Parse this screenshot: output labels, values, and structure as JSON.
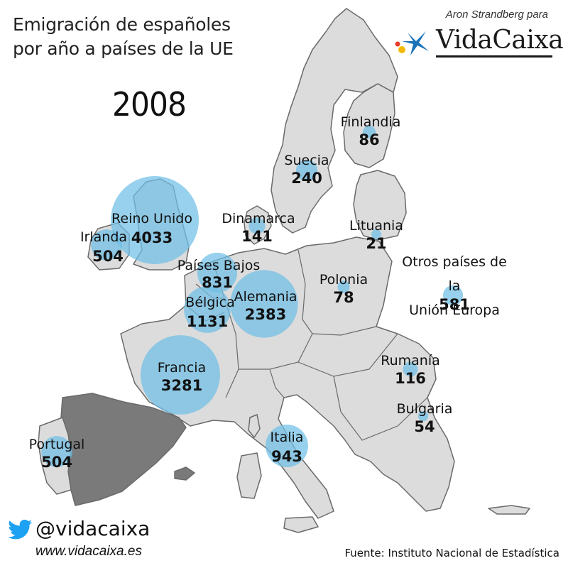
{
  "title_line1": "Emigración de españoles",
  "title_line2": "por año a países de la UE",
  "year": "2008",
  "author_credit": "Aron Strandberg para",
  "brand": {
    "name": "VidaCaixa",
    "icon": "caixa-star-logo-icon",
    "colors": {
      "star": "#1a73b8",
      "dot_yellow": "#f5b800",
      "dot_red": "#e53b2c"
    }
  },
  "social": {
    "icon": "twitter-bird-icon",
    "handle": "@vidacaixa",
    "website": "www.vidacaixa.es"
  },
  "source": "Fuente: Instituto Nacional de Estadística",
  "colors": {
    "land": "#dcdcdc",
    "border": "#6a6a6a",
    "origin_country": "#7a7a7a",
    "bubble": "#6fbfe6"
  },
  "origin_country": "España",
  "countries": [
    {
      "name": "Reino Unido",
      "value": 4033
    },
    {
      "name": "Irlanda",
      "value": 504
    },
    {
      "name": "Países Bajos",
      "value": 831
    },
    {
      "name": "Bélgica",
      "value": 1131
    },
    {
      "name": "Alemania",
      "value": 2383
    },
    {
      "name": "Francia",
      "value": 3281
    },
    {
      "name": "Portugal",
      "value": 504
    },
    {
      "name": "Italia",
      "value": 943
    },
    {
      "name": "Dinamarca",
      "value": 141
    },
    {
      "name": "Suecia",
      "value": 240
    },
    {
      "name": "Finlandia",
      "value": 86
    },
    {
      "name": "Lituania",
      "value": 21
    },
    {
      "name": "Polonia",
      "value": 78
    },
    {
      "name": "Rumanía",
      "value": 116
    },
    {
      "name": "Bulgaria",
      "value": 54
    }
  ],
  "other": {
    "line1": "Otros países de la",
    "line2": "Unión Europa",
    "value": 581
  }
}
